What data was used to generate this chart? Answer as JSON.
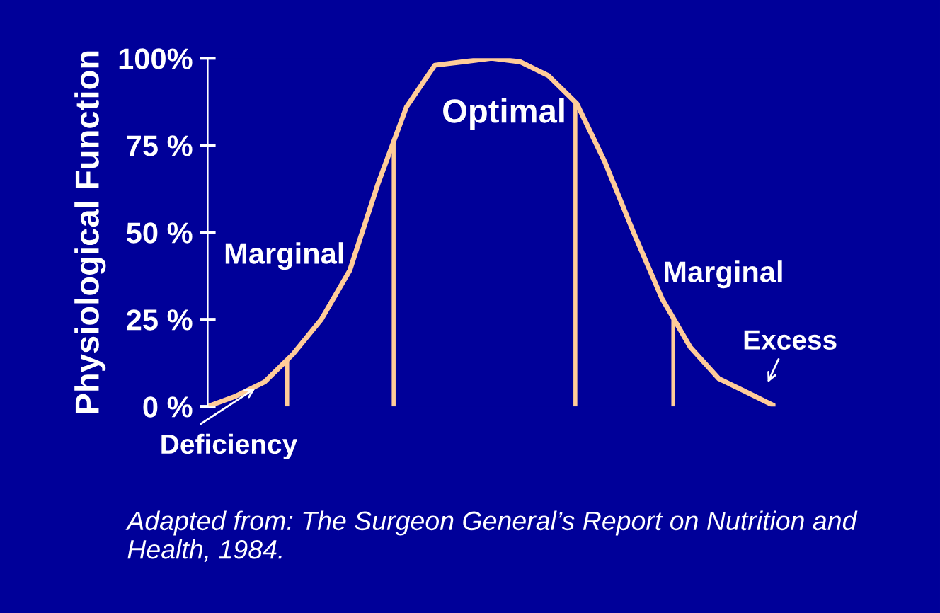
{
  "chart_data": {
    "type": "line",
    "ylabel": "Physiological Function",
    "categories": [
      null,
      null,
      null,
      null,
      null,
      null,
      null,
      null,
      null,
      null,
      null,
      null,
      null,
      null,
      null,
      null,
      null,
      null,
      null,
      null,
      null
    ],
    "series": [
      {
        "color": "#ffcc99",
        "values": [
          0,
          3,
          7,
          15,
          25,
          39,
          64,
          86,
          98,
          99,
          100,
          99,
          95,
          87,
          70,
          50,
          31,
          17,
          8,
          4,
          0
        ]
      }
    ],
    "ylim": [
      0,
      100
    ],
    "yticks": [
      {
        "value": 0,
        "label": "0 %"
      },
      {
        "value": 25,
        "label": "25 %"
      },
      {
        "value": 50,
        "label": "50 %"
      },
      {
        "value": 75,
        "label": "75 %"
      },
      {
        "value": 100,
        "label": "100%"
      }
    ],
    "tick_labels": "y",
    "grid": false,
    "legend": false,
    "marker": "none",
    "line_style": "solid",
    "annotations": [
      "Optimal",
      "Marginal",
      "Marginal",
      "Deficiency",
      "Excess",
      "Adapted from: The Surgeon General’s Report on Nutrition and Health, 1984."
    ]
  }
}
